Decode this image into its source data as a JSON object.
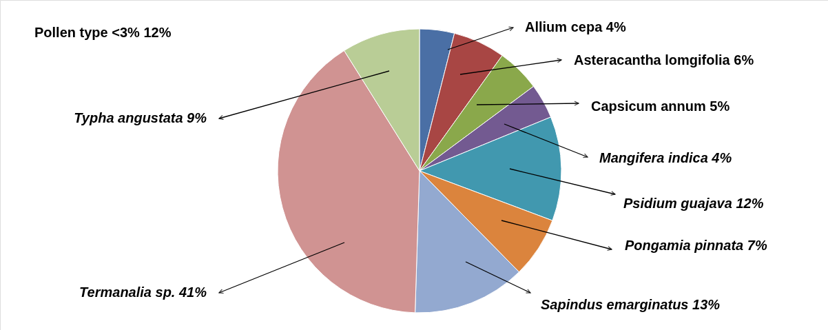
{
  "chart_data": {
    "type": "pie",
    "categories": [
      "Allium cepa 4%",
      "Asteracantha lomgifolia 6%",
      "Capsicum annum 5%",
      "Mangifera indica  4%",
      "Psidium guajava 12%",
      "Pongamia pinnata  7%",
      "Sapindus emarginatus 13%",
      "Termanalia sp. 41%",
      "Typha angustata 9%"
    ],
    "values": [
      4,
      6,
      5,
      4,
      12,
      7,
      13,
      41,
      9
    ],
    "colors": [
      "#4a6fa5",
      "#a84644",
      "#8aa84b",
      "#735a91",
      "#4198af",
      "#db843d",
      "#93a9d0",
      "#d09392",
      "#b9cd96"
    ],
    "annotations": [
      "Pollen type  <3%  12%"
    ]
  }
}
